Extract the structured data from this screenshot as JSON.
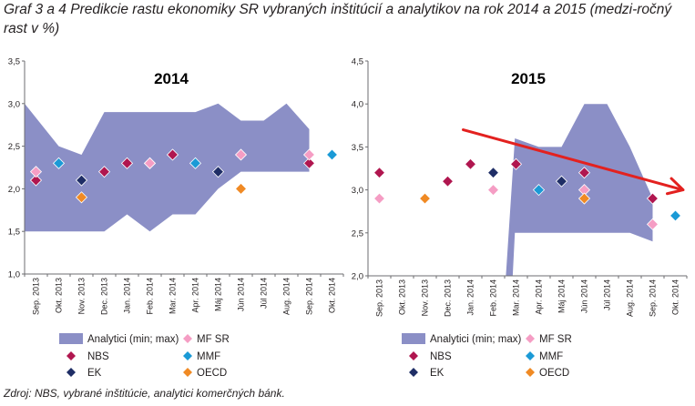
{
  "figure": {
    "title": "Graf 3 a 4 Predikcie rastu ekonomiky SR vybraných inštitúcií a analytikov na rok 2014 a 2015 (medzi-ročný rast v %)",
    "source": "Zdroj: NBS, vybrané inštitúcie, analytici komerčných bánk."
  },
  "colors": {
    "band": "#8b8fc6",
    "nbs": "#b0164f",
    "ek": "#1f2e66",
    "mfsr": "#f59dc4",
    "mmf": "#1b9ad6",
    "oecd": "#f08a24",
    "arrow": "#e3211f"
  },
  "chart_data": [
    {
      "type": "area",
      "title": "2014",
      "categories": [
        "Sep. 2013",
        "Okt. 2013",
        "Nov. 2013",
        "Dec. 2013",
        "Jan. 2014",
        "Feb. 2014",
        "Mar. 2014",
        "Apr. 2014",
        "Máj 2014",
        "Jún 2014",
        "Júl 2014",
        "Aug. 2014",
        "Sep. 2014",
        "Okt. 2014"
      ],
      "ylim": [
        1.0,
        3.5
      ],
      "yticks": [
        "1,0",
        "1,5",
        "2,0",
        "2,5",
        "3,0",
        "3,5"
      ],
      "grid": false,
      "analytici_band": {
        "name": "Analytici (min; max)",
        "max": [
          3.0,
          2.5,
          2.4,
          2.9,
          2.9,
          2.9,
          2.9,
          2.9,
          3.0,
          2.8,
          2.8,
          3.0,
          2.7,
          null
        ],
        "min": [
          1.5,
          1.5,
          1.5,
          1.5,
          1.7,
          1.5,
          1.7,
          1.7,
          2.0,
          2.2,
          2.2,
          2.2,
          2.2,
          null
        ]
      },
      "series": [
        {
          "name": "NBS",
          "values": [
            2.1,
            null,
            null,
            2.2,
            2.3,
            2.3,
            2.4,
            null,
            null,
            null,
            null,
            null,
            2.3,
            null
          ]
        },
        {
          "name": "EK",
          "values": [
            null,
            null,
            2.1,
            null,
            null,
            null,
            null,
            null,
            2.2,
            null,
            null,
            null,
            null,
            null
          ]
        },
        {
          "name": "MF SR",
          "values": [
            2.2,
            null,
            null,
            null,
            null,
            2.3,
            null,
            null,
            null,
            2.4,
            null,
            null,
            2.4,
            null
          ]
        },
        {
          "name": "MMF",
          "values": [
            null,
            2.3,
            null,
            null,
            null,
            null,
            null,
            2.3,
            null,
            null,
            null,
            null,
            null,
            2.4
          ]
        },
        {
          "name": "OECD",
          "values": [
            null,
            null,
            1.9,
            null,
            null,
            null,
            null,
            null,
            null,
            2.0,
            null,
            null,
            null,
            null
          ]
        }
      ]
    },
    {
      "type": "area",
      "title": "2015",
      "categories": [
        "Sep. 2013",
        "Okt. 2013",
        "Nov. 2013",
        "Dec. 2013",
        "Jan. 2014",
        "Feb. 2014",
        "Mar. 2014",
        "Apr. 2014",
        "Máj 2014",
        "Jún 2014",
        "Júl 2014",
        "Aug. 2014",
        "Sep. 2014",
        "Okt. 2014"
      ],
      "ylim": [
        2.0,
        4.5
      ],
      "yticks": [
        "2,0",
        "2,5",
        "3,0",
        "3,5",
        "4,0",
        "4,5"
      ],
      "grid": false,
      "analytici_band": {
        "name": "Analytici (min; max)",
        "max": [
          null,
          null,
          null,
          null,
          null,
          null,
          3.6,
          3.5,
          3.5,
          4.0,
          4.0,
          3.5,
          2.9,
          null
        ],
        "min": [
          null,
          null,
          null,
          null,
          null,
          null,
          2.5,
          2.5,
          2.5,
          2.5,
          2.5,
          2.5,
          2.4,
          null
        ]
      },
      "series": [
        {
          "name": "NBS",
          "values": [
            3.2,
            null,
            null,
            3.1,
            3.3,
            null,
            3.3,
            null,
            null,
            3.2,
            null,
            null,
            2.9,
            null
          ]
        },
        {
          "name": "EK",
          "values": [
            null,
            null,
            2.9,
            null,
            null,
            3.2,
            null,
            null,
            3.1,
            null,
            null,
            null,
            null,
            null
          ]
        },
        {
          "name": "MF SR",
          "values": [
            2.9,
            null,
            null,
            null,
            null,
            3.0,
            null,
            null,
            null,
            3.0,
            null,
            null,
            2.6,
            null
          ]
        },
        {
          "name": "MMF",
          "values": [
            null,
            null,
            null,
            null,
            null,
            null,
            null,
            3.0,
            null,
            null,
            null,
            null,
            null,
            2.7
          ]
        },
        {
          "name": "OECD",
          "values": [
            null,
            null,
            2.9,
            null,
            null,
            null,
            null,
            null,
            null,
            2.9,
            null,
            null,
            null,
            null
          ]
        }
      ],
      "trend_arrow": {
        "from": [
          4,
          3.7
        ],
        "to": [
          13,
          3.0
        ]
      }
    }
  ],
  "legend": {
    "band_label": "Analytici (min; max)",
    "mfsr_label": "MF SR",
    "nbs_label": "NBS",
    "mmf_label": "MMF",
    "ek_label": "EK",
    "oecd_label": "OECD"
  }
}
